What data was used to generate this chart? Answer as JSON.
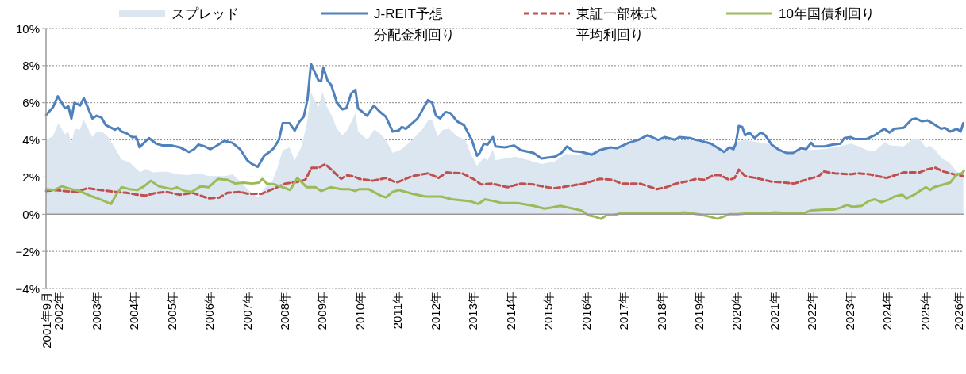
{
  "chart_data": {
    "type": "line",
    "xlim": [
      2001.667,
      2026.05
    ],
    "xticks": [
      {
        "value": 2001.667,
        "label": "2001年9月"
      },
      {
        "value": 2002,
        "label": "2002年"
      },
      {
        "value": 2003,
        "label": "2003年"
      },
      {
        "value": 2004,
        "label": "2004年"
      },
      {
        "value": 2005,
        "label": "2005年"
      },
      {
        "value": 2006,
        "label": "2006年"
      },
      {
        "value": 2007,
        "label": "2007年"
      },
      {
        "value": 2008,
        "label": "2008年"
      },
      {
        "value": 2009,
        "label": "2009年"
      },
      {
        "value": 2010,
        "label": "2010年"
      },
      {
        "value": 2011,
        "label": "2011年"
      },
      {
        "value": 2012,
        "label": "2012年"
      },
      {
        "value": 2013,
        "label": "2013年"
      },
      {
        "value": 2014,
        "label": "2014年"
      },
      {
        "value": 2015,
        "label": "2015年"
      },
      {
        "value": 2016,
        "label": "2016年"
      },
      {
        "value": 2017,
        "label": "2017年"
      },
      {
        "value": 2018,
        "label": "2018年"
      },
      {
        "value": 2019,
        "label": "2019年"
      },
      {
        "value": 2020,
        "label": "2020年"
      },
      {
        "value": 2021,
        "label": "2021年"
      },
      {
        "value": 2022,
        "label": "2022年"
      },
      {
        "value": 2023,
        "label": "2023年"
      },
      {
        "value": 2024,
        "label": "2024年"
      },
      {
        "value": 2025,
        "label": "2025年"
      },
      {
        "value": 2026,
        "label": "2026年"
      }
    ],
    "ylim": [
      -4,
      10
    ],
    "yticks": [
      {
        "value": -4,
        "label": "−4%"
      },
      {
        "value": -2,
        "label": "−2%"
      },
      {
        "value": 0,
        "label": "0%"
      },
      {
        "value": 2,
        "label": "2%"
      },
      {
        "value": 4,
        "label": "4%"
      },
      {
        "value": 6,
        "label": "6%"
      },
      {
        "value": 8,
        "label": "8%"
      },
      {
        "value": 10,
        "label": "10%"
      }
    ],
    "grid": "y",
    "legend": "top",
    "series": [
      {
        "name": "スプレッド",
        "type": "area",
        "color": "#dce6f1",
        "x": [
          2001.67,
          2001.85,
          2001.99,
          2002.17,
          2002.26,
          2002.34,
          2002.43,
          2002.57,
          2002.66,
          2002.9,
          2003.01,
          2003.18,
          2003.32,
          2003.53,
          2003.67,
          2003.88,
          2004.17,
          2004.3,
          2004.51,
          2004.87,
          2005.15,
          2005.43,
          2005.71,
          2005.99,
          2006.41,
          2006.62,
          2006.83,
          2007.04,
          2007.29,
          2007.46,
          2007.67,
          2007.81,
          2007.95,
          2008.13,
          2008.27,
          2008.44,
          2008.59,
          2008.7,
          2008.8,
          2008.9,
          2009.01,
          2009.11,
          2009.25,
          2009.39,
          2009.53,
          2009.64,
          2009.78,
          2009.88,
          2009.95,
          2010.2,
          2010.38,
          2010.51,
          2010.69,
          2010.87,
          2011.11,
          2011.39,
          2011.67,
          2011.81,
          2011.92,
          2012.06,
          2012.2,
          2012.37,
          2012.58,
          2012.8,
          2012.94,
          2013.11,
          2013.29,
          2013.39,
          2013.53,
          2013.6,
          2013.85,
          2014.13,
          2014.48,
          2014.83,
          2015.18,
          2015.46,
          2015.81,
          2016.16,
          2016.44,
          2016.72,
          2017.15,
          2017.64,
          2018.09,
          2018.41,
          2018.76,
          2019.32,
          2019.67,
          2019.81,
          2020.02,
          2020.23,
          2020.93,
          2021.35,
          2021.92,
          2022.27,
          2022.62,
          2023.04,
          2023.25,
          2023.46,
          2023.67,
          2023.81,
          2023.95,
          2024.06,
          2024.44,
          2024.65,
          2024.86,
          2025.04,
          2025.11,
          2025.28,
          2025.46,
          2025.64,
          2025.85,
          2025.99,
          2026.02
        ],
        "values": [
          4.0,
          4.2,
          4.9,
          4.3,
          4.45,
          3.8,
          4.6,
          4.55,
          5.1,
          4.15,
          4.45,
          4.4,
          4.15,
          3.45,
          2.95,
          2.8,
          2.25,
          2.45,
          2.25,
          2.3,
          2.15,
          2.1,
          2.2,
          2.05,
          2.05,
          2.15,
          1.75,
          1.3,
          0.9,
          1.4,
          1.75,
          2.5,
          3.45,
          3.6,
          2.9,
          3.6,
          4.85,
          6.55,
          6.15,
          5.75,
          6.6,
          5.85,
          5.3,
          4.6,
          4.25,
          4.45,
          5.0,
          5.45,
          4.45,
          4.0,
          4.55,
          4.4,
          4.0,
          3.3,
          3.5,
          4.0,
          4.6,
          5.05,
          5.05,
          4.2,
          4.55,
          4.6,
          4.2,
          4.0,
          3.25,
          2.6,
          3.05,
          2.9,
          3.5,
          2.9,
          3.0,
          3.1,
          2.9,
          2.7,
          2.85,
          3.25,
          3.2,
          3.35,
          3.6,
          3.55,
          3.8,
          4.1,
          4.0,
          3.95,
          4.0,
          3.8,
          3.35,
          3.6,
          3.9,
          4.0,
          3.75,
          3.3,
          3.45,
          3.5,
          3.6,
          3.8,
          3.65,
          3.45,
          3.4,
          3.65,
          3.9,
          3.7,
          3.65,
          4.0,
          4.05,
          3.55,
          3.7,
          3.45,
          3.0,
          2.8,
          2.3,
          2.15,
          2.6
        ]
      },
      {
        "name": "J-REIT予想分配金利回り",
        "color": "#4f81bd",
        "line_style": "solid",
        "x": [
          2001.67,
          2001.85,
          2001.98,
          2002.17,
          2002.26,
          2002.34,
          2002.42,
          2002.57,
          2002.67,
          2002.9,
          2003.01,
          2003.14,
          2003.25,
          2003.5,
          2003.58,
          2003.67,
          2003.81,
          2003.95,
          2004.06,
          2004.15,
          2004.27,
          2004.4,
          2004.59,
          2004.76,
          2005.01,
          2005.22,
          2005.46,
          2005.6,
          2005.71,
          2005.88,
          2006.02,
          2006.17,
          2006.4,
          2006.61,
          2006.82,
          2007.01,
          2007.14,
          2007.29,
          2007.46,
          2007.6,
          2007.71,
          2007.85,
          2007.95,
          2008.13,
          2008.27,
          2008.4,
          2008.51,
          2008.61,
          2008.7,
          2008.8,
          2008.9,
          2008.97,
          2009.03,
          2009.14,
          2009.24,
          2009.39,
          2009.53,
          2009.64,
          2009.77,
          2009.88,
          2009.95,
          2010.19,
          2010.37,
          2010.51,
          2010.69,
          2010.87,
          2011.03,
          2011.11,
          2011.22,
          2011.53,
          2011.81,
          2011.92,
          2012.02,
          2012.13,
          2012.27,
          2012.4,
          2012.58,
          2012.76,
          2012.97,
          2013.11,
          2013.18,
          2013.29,
          2013.39,
          2013.53,
          2013.6,
          2013.85,
          2014.09,
          2014.27,
          2014.61,
          2014.82,
          2015.18,
          2015.35,
          2015.5,
          2015.66,
          2015.88,
          2016.16,
          2016.37,
          2016.65,
          2016.82,
          2017.14,
          2017.39,
          2017.64,
          2017.92,
          2018.09,
          2018.37,
          2018.48,
          2018.76,
          2018.93,
          2019.14,
          2019.32,
          2019.67,
          2019.81,
          2019.92,
          2019.98,
          2020.06,
          2020.15,
          2020.23,
          2020.34,
          2020.48,
          2020.65,
          2020.76,
          2020.93,
          2021.14,
          2021.32,
          2021.5,
          2021.71,
          2021.85,
          2021.98,
          2022.06,
          2022.34,
          2022.55,
          2022.76,
          2022.86,
          2023.03,
          2023.14,
          2023.45,
          2023.67,
          2023.92,
          2024.06,
          2024.19,
          2024.44,
          2024.65,
          2024.76,
          2024.92,
          2025.07,
          2025.24,
          2025.43,
          2025.53,
          2025.67,
          2025.85,
          2025.95,
          2026.02
        ],
        "values": [
          5.35,
          5.75,
          6.35,
          5.7,
          5.8,
          5.15,
          6.0,
          5.85,
          6.25,
          5.15,
          5.3,
          5.2,
          4.8,
          4.55,
          4.65,
          4.45,
          4.35,
          4.15,
          4.15,
          3.6,
          3.85,
          4.1,
          3.8,
          3.7,
          3.7,
          3.6,
          3.35,
          3.5,
          3.75,
          3.65,
          3.5,
          3.65,
          3.95,
          3.85,
          3.5,
          2.9,
          2.7,
          2.55,
          3.15,
          3.35,
          3.55,
          4.0,
          4.9,
          4.9,
          4.5,
          5.0,
          5.25,
          6.2,
          8.1,
          7.65,
          7.2,
          7.15,
          7.9,
          7.2,
          6.95,
          6.0,
          5.65,
          5.7,
          6.5,
          6.7,
          5.7,
          5.3,
          5.85,
          5.55,
          5.25,
          4.45,
          4.5,
          4.7,
          4.6,
          5.15,
          6.15,
          6.0,
          5.3,
          5.15,
          5.5,
          5.45,
          5.0,
          4.8,
          4.0,
          3.15,
          3.3,
          3.8,
          3.75,
          4.15,
          3.65,
          3.6,
          3.7,
          3.45,
          3.3,
          3.0,
          3.1,
          3.3,
          3.65,
          3.4,
          3.35,
          3.2,
          3.45,
          3.6,
          3.55,
          3.85,
          4.0,
          4.25,
          4.0,
          4.15,
          4.0,
          4.15,
          4.1,
          4.0,
          3.9,
          3.8,
          3.35,
          3.6,
          3.5,
          3.8,
          4.75,
          4.7,
          4.25,
          4.4,
          4.1,
          4.4,
          4.25,
          3.75,
          3.45,
          3.3,
          3.3,
          3.55,
          3.5,
          3.85,
          3.65,
          3.65,
          3.75,
          3.8,
          4.1,
          4.15,
          4.05,
          4.05,
          4.25,
          4.6,
          4.4,
          4.6,
          4.65,
          5.1,
          5.15,
          5.0,
          5.05,
          4.85,
          4.6,
          4.65,
          4.45,
          4.6,
          4.45,
          4.9
        ]
      },
      {
        "name": "東証一部株式平均利回り",
        "color": "#c0504d",
        "line_style": "dashed",
        "x": [
          2001.67,
          2001.92,
          2002.13,
          2002.48,
          2002.76,
          2003.11,
          2003.53,
          2003.81,
          2004.09,
          2004.3,
          2004.59,
          2004.87,
          2005.22,
          2005.56,
          2005.98,
          2006.27,
          2006.48,
          2006.82,
          2007.03,
          2007.39,
          2007.74,
          2008.02,
          2008.38,
          2008.55,
          2008.72,
          2008.9,
          2009.08,
          2009.24,
          2009.5,
          2009.67,
          2009.88,
          2009.98,
          2010.34,
          2010.69,
          2010.97,
          2011.39,
          2011.81,
          2012.09,
          2012.3,
          2012.72,
          2013.01,
          2013.22,
          2013.5,
          2013.92,
          2014.27,
          2014.61,
          2014.97,
          2015.18,
          2015.66,
          2015.95,
          2016.37,
          2016.72,
          2016.93,
          2017.43,
          2017.88,
          2018.13,
          2018.4,
          2018.76,
          2018.93,
          2019.14,
          2019.39,
          2019.56,
          2019.81,
          2019.95,
          2020.06,
          2020.23,
          2020.51,
          2020.93,
          2021.29,
          2021.53,
          2021.92,
          2022.19,
          2022.3,
          2022.61,
          2023.03,
          2023.22,
          2023.53,
          2023.74,
          2023.98,
          2024.29,
          2024.44,
          2024.86,
          2025.03,
          2025.28,
          2025.49,
          2025.77,
          2026.02
        ],
        "values": [
          1.25,
          1.3,
          1.25,
          1.2,
          1.4,
          1.3,
          1.2,
          1.15,
          1.05,
          1.0,
          1.15,
          1.2,
          1.05,
          1.15,
          0.85,
          0.9,
          1.15,
          1.2,
          1.1,
          1.1,
          1.4,
          1.65,
          1.75,
          1.85,
          2.5,
          2.5,
          2.7,
          2.4,
          1.9,
          2.1,
          2.0,
          1.9,
          1.8,
          1.95,
          1.7,
          2.05,
          2.2,
          1.95,
          2.25,
          2.2,
          1.9,
          1.6,
          1.65,
          1.45,
          1.65,
          1.6,
          1.45,
          1.4,
          1.55,
          1.65,
          1.9,
          1.85,
          1.65,
          1.65,
          1.35,
          1.45,
          1.65,
          1.8,
          1.9,
          1.85,
          2.1,
          2.1,
          1.85,
          1.95,
          2.4,
          2.05,
          1.95,
          1.75,
          1.7,
          1.65,
          1.9,
          2.05,
          2.3,
          2.2,
          2.15,
          2.2,
          2.15,
          2.05,
          1.95,
          2.15,
          2.25,
          2.25,
          2.4,
          2.5,
          2.3,
          2.15,
          2.05
        ]
      },
      {
        "name": "10年国債利回り",
        "color": "#9bbb59",
        "line_style": "solid",
        "x": [
          2001.67,
          2001.88,
          2002.09,
          2002.34,
          2002.55,
          2002.9,
          2003.11,
          2003.39,
          2003.53,
          2003.67,
          2003.88,
          2004.09,
          2004.27,
          2004.45,
          2004.66,
          2005.01,
          2005.14,
          2005.35,
          2005.53,
          2005.77,
          2005.98,
          2006.23,
          2006.48,
          2006.69,
          2006.9,
          2007.14,
          2007.32,
          2007.41,
          2007.53,
          2007.74,
          2008.02,
          2008.15,
          2008.34,
          2008.59,
          2008.82,
          2008.97,
          2009.22,
          2009.5,
          2009.71,
          2009.88,
          2009.98,
          2010.23,
          2010.55,
          2010.69,
          2010.87,
          2011.03,
          2011.22,
          2011.39,
          2011.74,
          2012.16,
          2012.44,
          2012.93,
          2013.14,
          2013.32,
          2013.56,
          2013.77,
          2014.19,
          2014.61,
          2014.9,
          2015.07,
          2015.32,
          2015.66,
          2015.88,
          2016.06,
          2016.27,
          2016.4,
          2016.55,
          2016.72,
          2016.93,
          2017.14,
          2017.64,
          2018.09,
          2018.4,
          2018.61,
          2018.97,
          2019.22,
          2019.5,
          2019.81,
          2020.02,
          2020.37,
          2020.8,
          2021.0,
          2021.43,
          2021.77,
          2021.98,
          2022.34,
          2022.58,
          2022.76,
          2022.93,
          2023.07,
          2023.32,
          2023.5,
          2023.67,
          2023.85,
          2024.06,
          2024.19,
          2024.4,
          2024.51,
          2024.72,
          2024.9,
          2025.03,
          2025.14,
          2025.24,
          2025.67,
          2025.85,
          2025.98,
          2026.04
        ],
        "values": [
          1.35,
          1.3,
          1.5,
          1.35,
          1.25,
          0.95,
          0.8,
          0.55,
          1.05,
          1.45,
          1.35,
          1.3,
          1.5,
          1.8,
          1.5,
          1.35,
          1.45,
          1.25,
          1.2,
          1.5,
          1.45,
          1.9,
          1.85,
          1.65,
          1.7,
          1.65,
          1.7,
          1.9,
          1.65,
          1.6,
          1.4,
          1.3,
          1.95,
          1.45,
          1.45,
          1.25,
          1.45,
          1.35,
          1.35,
          1.25,
          1.35,
          1.35,
          1.0,
          0.9,
          1.2,
          1.3,
          1.2,
          1.1,
          0.95,
          0.95,
          0.8,
          0.7,
          0.55,
          0.8,
          0.7,
          0.6,
          0.6,
          0.45,
          0.3,
          0.35,
          0.45,
          0.3,
          0.2,
          -0.05,
          -0.15,
          -0.25,
          -0.05,
          -0.05,
          0.05,
          0.05,
          0.05,
          0.05,
          0.05,
          0.1,
          0.0,
          -0.1,
          -0.25,
          0.0,
          0.0,
          0.05,
          0.05,
          0.1,
          0.05,
          0.05,
          0.2,
          0.25,
          0.25,
          0.35,
          0.5,
          0.4,
          0.45,
          0.7,
          0.8,
          0.65,
          0.8,
          0.95,
          1.05,
          0.85,
          1.05,
          1.3,
          1.45,
          1.3,
          1.45,
          1.7,
          2.15,
          2.2,
          2.35
        ]
      }
    ]
  }
}
